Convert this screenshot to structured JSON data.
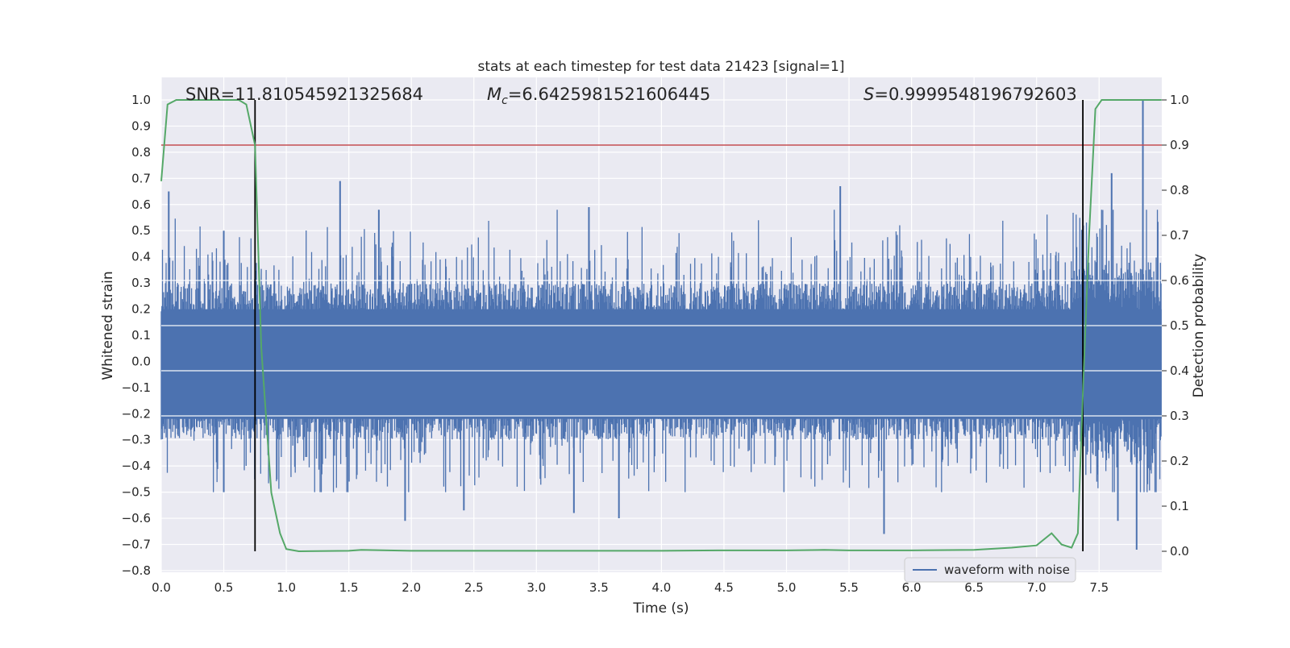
{
  "chart_data": {
    "type": "line",
    "title": "stats at each timestep for test data 21423 [signal=1]",
    "xlabel": "Time (s)",
    "ylabel": "Whitened strain",
    "ylabel_right": "Detection probability",
    "xlim": [
      0.0,
      8.0
    ],
    "ylim": [
      -0.81,
      1.08
    ],
    "ylim_right": [
      -0.045,
      1.03
    ],
    "x_ticks": [
      "0.0",
      "0.5",
      "1.0",
      "1.5",
      "2.0",
      "2.5",
      "3.0",
      "3.5",
      "4.0",
      "4.5",
      "5.0",
      "5.5",
      "6.0",
      "6.5",
      "7.0",
      "7.5"
    ],
    "y_ticks": [
      "1.0",
      "0.9",
      "0.8",
      "0.7",
      "0.6",
      "0.5",
      "0.4",
      "0.3",
      "0.2",
      "0.1",
      "0.0",
      "−0.1",
      "−0.2",
      "−0.3",
      "−0.4",
      "−0.5",
      "−0.6",
      "−0.7",
      "−0.8"
    ],
    "y_ticks_right": [
      "1.0",
      "0.9",
      "0.8",
      "0.7",
      "0.6",
      "0.5",
      "0.4",
      "0.3",
      "0.2",
      "0.1",
      "0.0"
    ],
    "annotations": {
      "snr": "SNR=11.810545921325684",
      "mc_symbol": "M",
      "mc_sub": "c",
      "mc_value": "=6.6425981521606445",
      "s_symbol": "S",
      "s_value": "=0.9999548196792603"
    },
    "legend": {
      "label": "waveform with noise",
      "position": "lower right"
    },
    "grid": true,
    "threshold_line": {
      "axis": "right",
      "y": 0.9,
      "color": "#c44e52"
    },
    "vertical_lines": [
      0.75,
      7.37
    ],
    "waveform_series": {
      "name": "waveform with noise",
      "color": "#4c72b0",
      "duration": 8.0,
      "core_envelope": 0.3,
      "peaks_positive": [
        [
          0.06,
          0.65
        ],
        [
          0.5,
          0.5
        ],
        [
          1.43,
          0.69
        ],
        [
          1.74,
          0.58
        ],
        [
          3.42,
          0.59
        ],
        [
          5.43,
          0.67
        ],
        [
          7.6,
          0.72
        ],
        [
          7.85,
          1.0
        ]
      ],
      "peaks_negative": [
        [
          0.5,
          -0.5
        ],
        [
          1.95,
          -0.61
        ],
        [
          2.42,
          -0.57
        ],
        [
          3.3,
          -0.58
        ],
        [
          3.66,
          -0.6
        ],
        [
          5.78,
          -0.66
        ],
        [
          7.8,
          -0.72
        ],
        [
          7.65,
          -0.61
        ]
      ]
    },
    "probability_series": {
      "name": "detection probability",
      "color": "#55a868",
      "x": [
        0.0,
        0.05,
        0.12,
        0.3,
        0.5,
        0.62,
        0.68,
        0.75,
        0.8,
        0.88,
        0.95,
        1.0,
        1.1,
        1.5,
        1.6,
        2.0,
        3.0,
        4.0,
        4.45,
        5.0,
        5.3,
        5.5,
        6.0,
        6.5,
        6.8,
        7.0,
        7.12,
        7.2,
        7.28,
        7.33,
        7.37,
        7.42,
        7.47,
        7.52,
        7.6,
        8.0
      ],
      "y": [
        0.82,
        0.99,
        1.0,
        1.0,
        1.0,
        1.0,
        0.99,
        0.9,
        0.45,
        0.13,
        0.04,
        0.005,
        0.0,
        0.001,
        0.003,
        0.001,
        0.001,
        0.001,
        0.002,
        0.002,
        0.003,
        0.002,
        0.002,
        0.003,
        0.008,
        0.013,
        0.04,
        0.015,
        0.008,
        0.04,
        0.35,
        0.7,
        0.98,
        1.0,
        1.0,
        1.0
      ]
    }
  }
}
